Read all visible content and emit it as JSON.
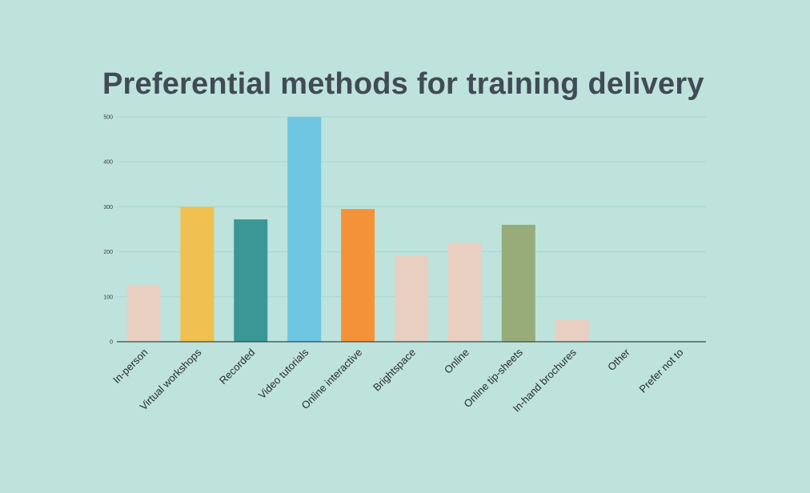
{
  "chart_data": {
    "type": "bar",
    "title": "Preferential methods for training delivery",
    "xlabel": "",
    "ylabel": "",
    "ylim": [
      0,
      500
    ],
    "yticks": [
      0,
      100,
      200,
      300,
      400,
      500
    ],
    "grid": true,
    "legend": "none",
    "categories": [
      "In-person",
      "Virtual workshops",
      "Recorded",
      "Video tutorials",
      "Online interactive",
      "Brightspace",
      "Online",
      "Online tip-sheets",
      "In-hand brochures",
      "Other",
      "Prefer not to"
    ],
    "values": [
      127,
      300,
      272,
      500,
      295,
      192,
      220,
      260,
      50,
      2,
      2
    ],
    "colors": [
      "#e8cfc1",
      "#f0c050",
      "#3b9696",
      "#6ec6e2",
      "#f4923a",
      "#e8cfc1",
      "#e8cfc1",
      "#98ac7a",
      "#e8cfc1",
      "#e8cfc1",
      "#e8cfc1"
    ]
  },
  "style": {
    "background": "#bde3dc",
    "gridline_color": "#a9d7cf",
    "axis_color": "#3a4a4a",
    "title_color": "#424b55"
  }
}
